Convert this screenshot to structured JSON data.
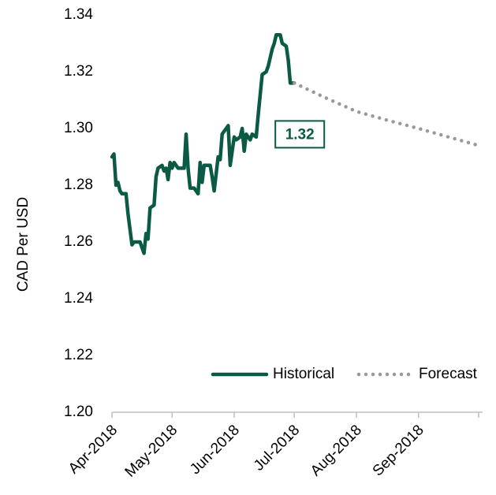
{
  "chart_data": {
    "type": "line",
    "ylabel": "CAD Per USD",
    "annotation": "1.32",
    "xlim": [
      0,
      185
    ],
    "xticks": [
      {
        "value": 0,
        "label": "Apr-2018"
      },
      {
        "value": 30,
        "label": "May-2018"
      },
      {
        "value": 61,
        "label": "Jun-2018"
      },
      {
        "value": 91,
        "label": "Jul-2018"
      },
      {
        "value": 122,
        "label": "Aug-2018"
      },
      {
        "value": 153,
        "label": "Sep-2018"
      },
      {
        "value": 183,
        "label": ""
      }
    ],
    "ylim": [
      1.2,
      1.34
    ],
    "yticks": [
      {
        "value": 1.2,
        "label": "1.20"
      },
      {
        "value": 1.22,
        "label": "1.22"
      },
      {
        "value": 1.24,
        "label": "1.24"
      },
      {
        "value": 1.26,
        "label": "1.26"
      },
      {
        "value": 1.28,
        "label": "1.28"
      },
      {
        "value": 1.3,
        "label": "1.30"
      },
      {
        "value": 1.32,
        "label": "1.32"
      },
      {
        "value": 1.34,
        "label": "1.34"
      }
    ],
    "grid": false,
    "legend": "lower right",
    "series": [
      {
        "name": "Historical",
        "color": "#0b5a45",
        "style": "solid",
        "x": [
          0,
          1,
          2,
          3,
          4,
          5,
          7,
          8,
          10,
          11,
          14,
          15,
          16,
          17,
          18,
          19,
          21,
          22,
          23,
          25,
          26,
          27,
          28,
          29,
          30,
          31,
          33,
          36,
          37,
          38,
          39,
          41,
          43,
          44,
          45,
          46,
          49,
          50,
          51,
          53,
          54,
          55,
          57,
          58,
          59,
          61,
          62,
          64,
          65,
          66,
          67,
          69,
          70,
          72,
          73,
          75,
          77,
          78,
          80,
          81,
          82,
          84,
          85,
          87,
          88,
          89,
          91
        ],
        "values": [
          1.29,
          1.291,
          1.28,
          1.281,
          1.278,
          1.277,
          1.277,
          1.27,
          1.259,
          1.26,
          1.26,
          1.258,
          1.256,
          1.263,
          1.261,
          1.272,
          1.273,
          1.283,
          1.286,
          1.287,
          1.285,
          1.286,
          1.282,
          1.288,
          1.286,
          1.288,
          1.286,
          1.286,
          1.298,
          1.286,
          1.279,
          1.279,
          1.277,
          1.288,
          1.281,
          1.287,
          1.287,
          1.283,
          1.278,
          1.29,
          1.289,
          1.298,
          1.3,
          1.301,
          1.287,
          1.297,
          1.296,
          1.297,
          1.3,
          1.292,
          1.298,
          1.296,
          1.298,
          1.297,
          1.305,
          1.319,
          1.32,
          1.322,
          1.328,
          1.33,
          1.333,
          1.333,
          1.33,
          1.329,
          1.324,
          1.316,
          1.316
        ]
      },
      {
        "name": "Forecast",
        "color": "#999999",
        "style": "dotted",
        "x": [
          91,
          106,
          122,
          137,
          153,
          168,
          183
        ],
        "values": [
          1.316,
          1.311,
          1.306,
          1.303,
          1.3,
          1.297,
          1.294
        ]
      }
    ]
  }
}
